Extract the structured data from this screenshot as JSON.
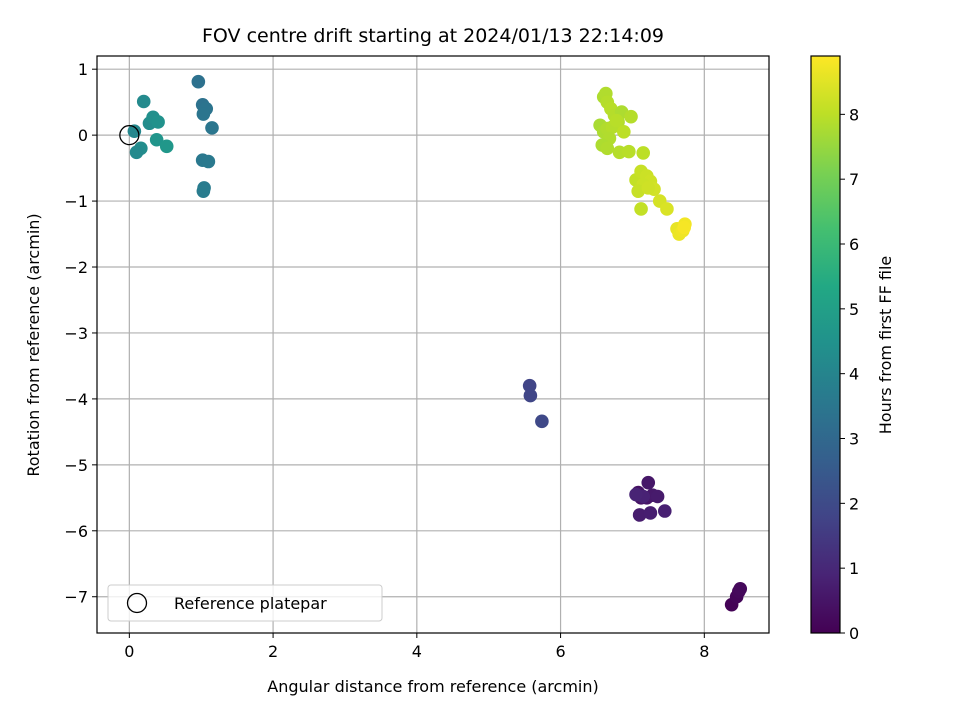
{
  "chart_data": {
    "type": "scatter",
    "title": "FOV centre drift starting at 2024/01/13 22:14:09",
    "xlabel": "Angular distance from reference (arcmin)",
    "ylabel": "Rotation from reference (arcmin)",
    "xlim": [
      -0.45,
      8.9
    ],
    "ylim": [
      -7.55,
      1.2
    ],
    "x_ticks": [
      0,
      2,
      4,
      6,
      8
    ],
    "y_ticks": [
      1,
      0,
      -1,
      -2,
      -3,
      -4,
      -5,
      -6,
      -7
    ],
    "x_tick_labels": [
      "0",
      "2",
      "4",
      "6",
      "8"
    ],
    "y_tick_labels": [
      "1",
      "0",
      "−1",
      "−2",
      "−3",
      "−4",
      "−5",
      "−6",
      "−7"
    ],
    "grid": true,
    "legend": {
      "position": "lower-left",
      "entries": [
        "Reference platepar"
      ]
    },
    "reference_point": {
      "x": 0,
      "y": 0,
      "marker": "open-circle",
      "label": "Reference platepar"
    },
    "colorbar": {
      "label": "Hours from first FF file",
      "colormap": "viridis",
      "range": [
        0,
        8.9
      ],
      "ticks": [
        0,
        1,
        2,
        3,
        4,
        5,
        6,
        7,
        8
      ],
      "tick_labels": [
        "0",
        "1",
        "2",
        "3",
        "4",
        "5",
        "6",
        "7",
        "8"
      ]
    },
    "points": [
      {
        "x": 8.38,
        "y": -7.12,
        "c": 0.05
      },
      {
        "x": 8.45,
        "y": -7.0,
        "c": 0.1
      },
      {
        "x": 8.48,
        "y": -6.92,
        "c": 0.15
      },
      {
        "x": 8.5,
        "y": -6.88,
        "c": 0.2
      },
      {
        "x": 7.08,
        "y": -5.42,
        "c": 0.4
      },
      {
        "x": 7.12,
        "y": -5.5,
        "c": 0.45
      },
      {
        "x": 7.2,
        "y": -5.5,
        "c": 0.5
      },
      {
        "x": 7.22,
        "y": -5.27,
        "c": 0.55
      },
      {
        "x": 7.28,
        "y": -5.46,
        "c": 0.6
      },
      {
        "x": 7.35,
        "y": -5.48,
        "c": 0.65
      },
      {
        "x": 7.1,
        "y": -5.76,
        "c": 0.7
      },
      {
        "x": 7.25,
        "y": -5.73,
        "c": 0.75
      },
      {
        "x": 7.45,
        "y": -5.7,
        "c": 0.8
      },
      {
        "x": 7.15,
        "y": -5.48,
        "c": 0.85
      },
      {
        "x": 7.05,
        "y": -5.45,
        "c": 0.9
      },
      {
        "x": 5.57,
        "y": -3.8,
        "c": 1.8
      },
      {
        "x": 5.58,
        "y": -3.95,
        "c": 1.85
      },
      {
        "x": 5.74,
        "y": -4.34,
        "c": 1.95
      },
      {
        "x": 0.96,
        "y": 0.81,
        "c": 3.3
      },
      {
        "x": 1.02,
        "y": 0.46,
        "c": 3.35
      },
      {
        "x": 1.07,
        "y": 0.4,
        "c": 3.4
      },
      {
        "x": 1.03,
        "y": 0.32,
        "c": 3.45
      },
      {
        "x": 1.15,
        "y": 0.11,
        "c": 3.5
      },
      {
        "x": 1.02,
        "y": -0.38,
        "c": 3.55
      },
      {
        "x": 1.1,
        "y": -0.4,
        "c": 3.6
      },
      {
        "x": 1.04,
        "y": -0.8,
        "c": 3.65
      },
      {
        "x": 1.03,
        "y": -0.85,
        "c": 3.7
      },
      {
        "x": 0.07,
        "y": 0.06,
        "c": 4.1
      },
      {
        "x": 0.2,
        "y": 0.51,
        "c": 4.2
      },
      {
        "x": 0.28,
        "y": 0.18,
        "c": 4.3
      },
      {
        "x": 0.33,
        "y": 0.27,
        "c": 4.4
      },
      {
        "x": 0.4,
        "y": 0.2,
        "c": 4.5
      },
      {
        "x": 0.38,
        "y": -0.07,
        "c": 4.6
      },
      {
        "x": 0.52,
        "y": -0.17,
        "c": 4.7
      },
      {
        "x": 0.16,
        "y": -0.2,
        "c": 4.3
      },
      {
        "x": 0.1,
        "y": -0.26,
        "c": 4.2
      },
      {
        "x": 6.6,
        "y": 0.58,
        "c": 7.8
      },
      {
        "x": 6.63,
        "y": 0.63,
        "c": 7.85
      },
      {
        "x": 6.65,
        "y": 0.5,
        "c": 7.9
      },
      {
        "x": 6.7,
        "y": 0.4,
        "c": 7.95
      },
      {
        "x": 6.75,
        "y": 0.3,
        "c": 7.9
      },
      {
        "x": 6.8,
        "y": 0.2,
        "c": 7.85
      },
      {
        "x": 6.85,
        "y": 0.35,
        "c": 7.8
      },
      {
        "x": 6.55,
        "y": 0.15,
        "c": 7.75
      },
      {
        "x": 6.6,
        "y": 0.05,
        "c": 7.8
      },
      {
        "x": 6.65,
        "y": 0.1,
        "c": 7.85
      },
      {
        "x": 6.72,
        "y": 0.12,
        "c": 7.9
      },
      {
        "x": 6.78,
        "y": 0.22,
        "c": 7.95
      },
      {
        "x": 6.88,
        "y": 0.05,
        "c": 8.0
      },
      {
        "x": 6.98,
        "y": 0.28,
        "c": 7.9
      },
      {
        "x": 6.68,
        "y": -0.05,
        "c": 7.85
      },
      {
        "x": 6.58,
        "y": -0.15,
        "c": 7.8
      },
      {
        "x": 6.65,
        "y": -0.2,
        "c": 7.85
      },
      {
        "x": 6.82,
        "y": -0.26,
        "c": 7.9
      },
      {
        "x": 6.95,
        "y": -0.25,
        "c": 7.95
      },
      {
        "x": 7.15,
        "y": -0.27,
        "c": 8.0
      },
      {
        "x": 7.05,
        "y": -0.68,
        "c": 8.1
      },
      {
        "x": 7.12,
        "y": -0.55,
        "c": 8.15
      },
      {
        "x": 7.2,
        "y": -0.62,
        "c": 8.2
      },
      {
        "x": 7.25,
        "y": -0.7,
        "c": 8.25
      },
      {
        "x": 7.3,
        "y": -0.82,
        "c": 8.3
      },
      {
        "x": 7.15,
        "y": -0.75,
        "c": 8.2
      },
      {
        "x": 7.08,
        "y": -0.85,
        "c": 8.15
      },
      {
        "x": 7.22,
        "y": -0.8,
        "c": 8.25
      },
      {
        "x": 7.12,
        "y": -1.12,
        "c": 8.1
      },
      {
        "x": 7.38,
        "y": -1.0,
        "c": 8.35
      },
      {
        "x": 7.48,
        "y": -1.12,
        "c": 8.4
      },
      {
        "x": 7.62,
        "y": -1.42,
        "c": 8.6
      },
      {
        "x": 7.65,
        "y": -1.5,
        "c": 8.65
      },
      {
        "x": 7.7,
        "y": -1.45,
        "c": 8.7
      },
      {
        "x": 7.73,
        "y": -1.35,
        "c": 8.75
      },
      {
        "x": 7.72,
        "y": -1.4,
        "c": 8.8
      }
    ]
  }
}
